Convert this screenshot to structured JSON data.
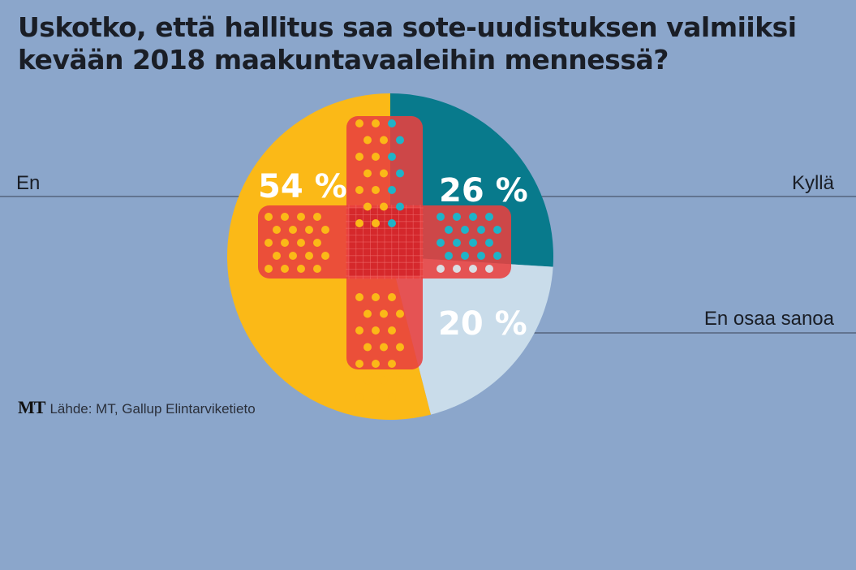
{
  "chart_data": {
    "type": "pie",
    "title_line1": "Uskotko, että hallitus saa sote-uudistuksen valmiiksi",
    "title_line2": "kevään 2018 maakuntavaaleihin mennessä?",
    "slices": [
      {
        "label": "Kyllä",
        "value": 26,
        "value_label": "26 %",
        "color": "#087a8c",
        "dot_color": "#1fb3c8"
      },
      {
        "label": "En osaa sanoa",
        "value": 20,
        "value_label": "20 %",
        "color": "#c9dcea",
        "dot_color": "#d9dde3"
      },
      {
        "label": "En",
        "value": 54,
        "value_label": "54 %",
        "color": "#fbb917",
        "dot_color": "#fbb917"
      }
    ],
    "start": "top",
    "direction": "clockwise"
  },
  "source": {
    "logo": "MT",
    "text": "Lähde: MT, Gallup Elintarviketieto"
  },
  "colors": {
    "background": "#8ba6cb",
    "cross": "#e8403f"
  }
}
